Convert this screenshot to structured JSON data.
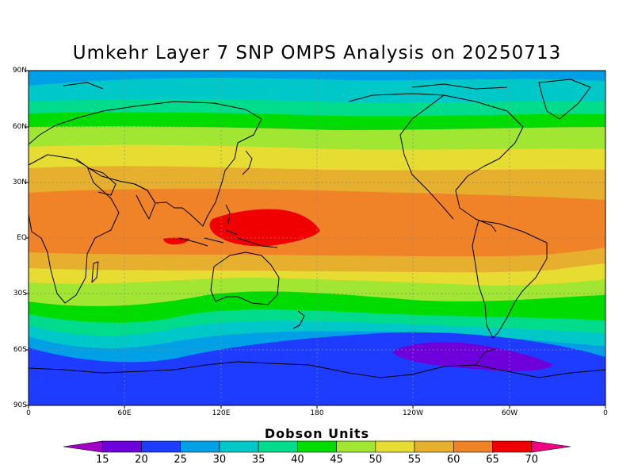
{
  "title": "Umkehr Layer 7 SNP OMPS Analysis on 20250713",
  "lat_ticks": [
    "90N",
    "60N",
    "30N",
    "EQ",
    "30S",
    "60S",
    "90S"
  ],
  "lon_ticks": [
    "0",
    "60E",
    "120E",
    "180",
    "120W",
    "60W",
    "0"
  ],
  "colorbar": {
    "title": "Dobson Units",
    "levels": [
      "15",
      "20",
      "25",
      "30",
      "35",
      "40",
      "45",
      "50",
      "55",
      "60",
      "65",
      "70"
    ],
    "colors": [
      "#a000c8",
      "#6e00dc",
      "#1e3cff",
      "#00a0e6",
      "#00c8c8",
      "#00dc8c",
      "#00dc00",
      "#a0e632",
      "#e6dc32",
      "#e6af2d",
      "#f08228",
      "#f00000",
      "#f00082"
    ]
  },
  "map": {
    "projection": "cylindrical equidistant",
    "lon_range": [
      0,
      360
    ],
    "lat_range": [
      -90,
      90
    ],
    "gridlines": "dotted",
    "field": "ozone (Dobson Units)"
  }
}
